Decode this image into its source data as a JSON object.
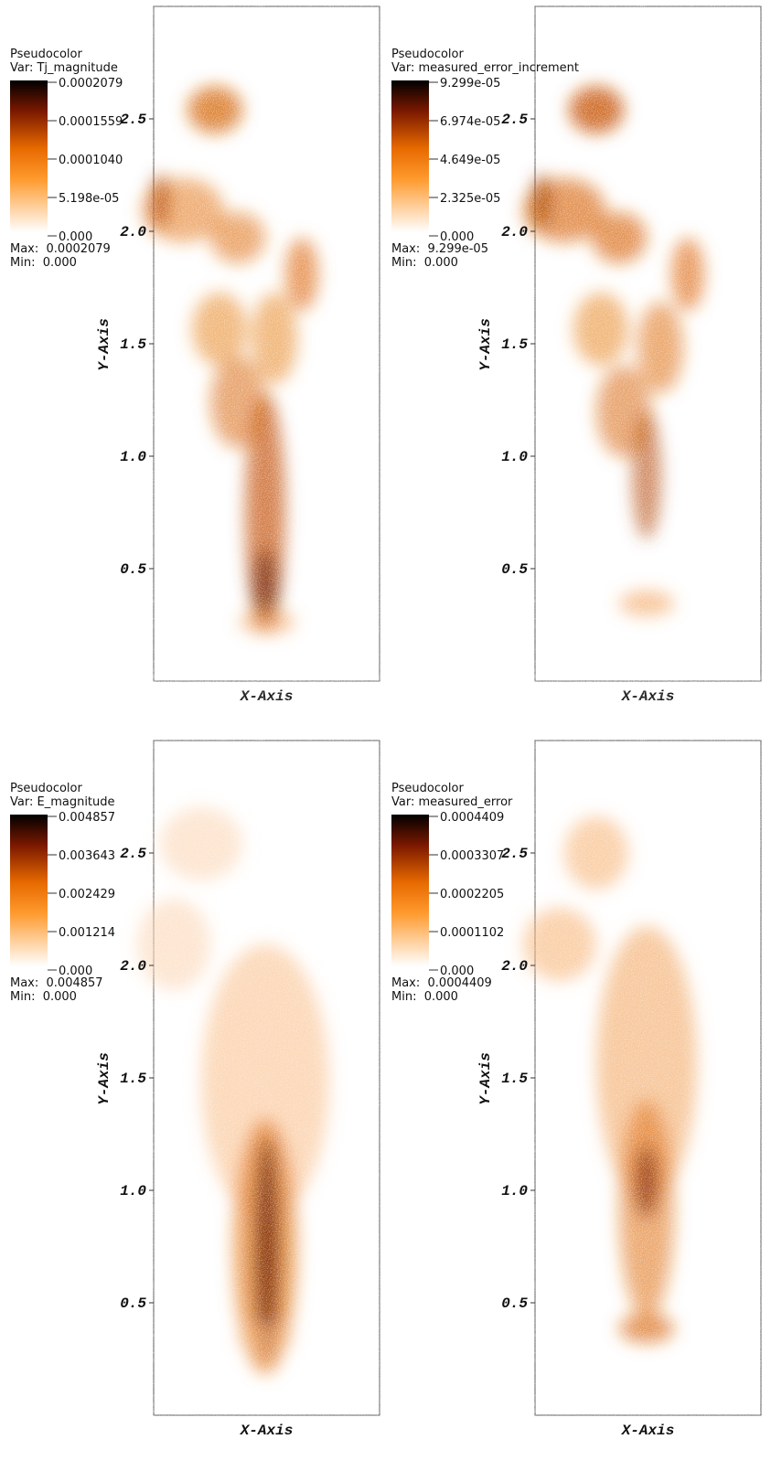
{
  "chart_data": [
    {
      "type": "pseudocolor",
      "legend_title": "Pseudocolor",
      "variable": "Var: Tj_magnitude",
      "colorbar_lim": [
        0,
        0.0002079
      ],
      "colorbar_ticks": [
        0.0002079,
        0.0001559,
        {
          "value": 0.000104,
          "label": "0.0001040"
        },
        {
          "value": 5.198e-05,
          "label": "5.198e-05"
        },
        {
          "value": 0,
          "label": "0.000"
        }
      ],
      "max_label": "Max:  0.0002079",
      "min_label": "Min:  0.000",
      "ylabel": "Y-Axis",
      "xlabel": "X-Axis",
      "ylim": [
        0,
        3
      ],
      "yticks": [
        0.5,
        {
          "value": 1,
          "label": "1.0"
        },
        1.5,
        {
          "value": 2,
          "label": "2.0"
        },
        2.5
      ]
    },
    {
      "type": "pseudocolor",
      "legend_title": "Pseudocolor",
      "variable": "Var: measured_error_increment",
      "colorbar_lim": [
        0,
        9.299e-05
      ],
      "colorbar_ticks": [
        {
          "value": 9.299e-05,
          "label": "9.299e-05"
        },
        {
          "value": 6.974e-05,
          "label": "6.974e-05"
        },
        {
          "value": 4.649e-05,
          "label": "4.649e-05"
        },
        {
          "value": 2.325e-05,
          "label": "2.325e-05"
        },
        {
          "value": 0,
          "label": "0.000"
        }
      ],
      "max_label": "Max:  9.299e-05",
      "min_label": "Min:  0.000",
      "ylabel": "Y-Axis",
      "xlabel": "X-Axis",
      "ylim": [
        0,
        3
      ],
      "yticks": [
        0.5,
        {
          "value": 1,
          "label": "1.0"
        },
        1.5,
        {
          "value": 2,
          "label": "2.0"
        },
        2.5
      ]
    },
    {
      "type": "pseudocolor",
      "legend_title": "Pseudocolor",
      "variable": "Var: E_magnitude",
      "colorbar_lim": [
        0,
        0.004857
      ],
      "colorbar_ticks": [
        0.004857,
        0.003643,
        0.002429,
        0.001214,
        {
          "value": 0,
          "label": "0.000"
        }
      ],
      "max_label": "Max:  0.004857",
      "min_label": "Min:  0.000",
      "ylabel": "Y-Axis",
      "xlabel": "X-Axis",
      "ylim": [
        0,
        3
      ],
      "yticks": [
        0.5,
        {
          "value": 1,
          "label": "1.0"
        },
        1.5,
        {
          "value": 2,
          "label": "2.0"
        },
        2.5
      ]
    },
    {
      "type": "pseudocolor",
      "legend_title": "Pseudocolor",
      "variable": "Var: measured_error",
      "colorbar_lim": [
        0,
        0.0004409
      ],
      "colorbar_ticks": [
        0.0004409,
        0.0003307,
        0.0002205,
        0.0001102,
        {
          "value": 0,
          "label": "0.000"
        }
      ],
      "max_label": "Max:  0.0004409",
      "min_label": "Min:  0.000",
      "ylabel": "Y-Axis",
      "xlabel": "X-Axis",
      "ylim": [
        0,
        3
      ],
      "yticks": [
        0.5,
        {
          "value": 1,
          "label": "1.0"
        },
        1.5,
        {
          "value": 2,
          "label": "2.0"
        },
        2.5
      ]
    }
  ]
}
